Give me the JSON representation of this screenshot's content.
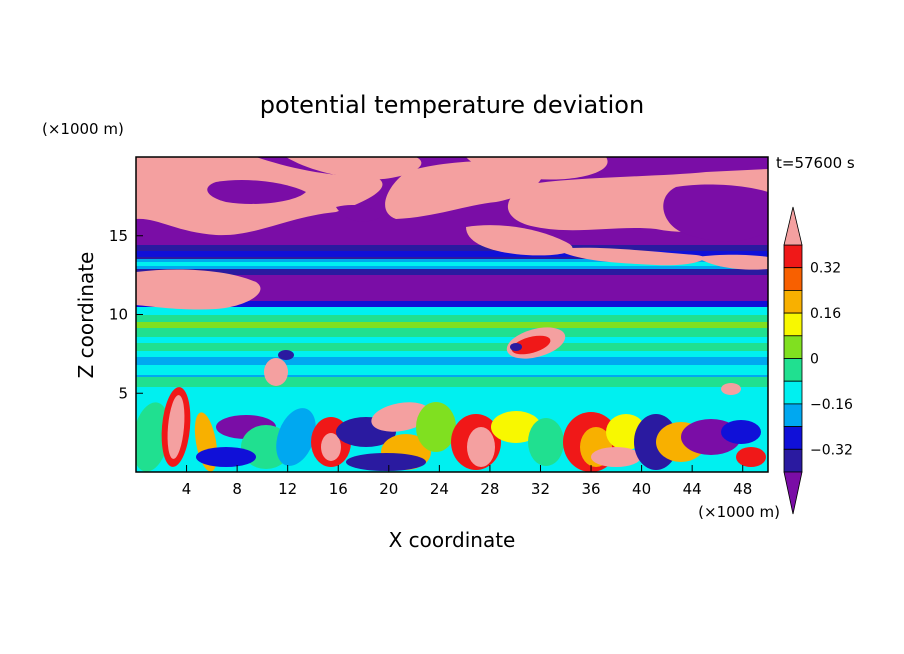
{
  "chart_data": {
    "type": "heatmap",
    "title": "potential temperature deviation",
    "xlabel": "X coordinate",
    "ylabel": "Z coordinate",
    "x_unit": "(×1000 m)",
    "y_unit": "(×1000 m)",
    "time_label": "t=57600 s",
    "xlim": [
      0,
      50
    ],
    "ylim": [
      0,
      20
    ],
    "x_ticks": [
      4,
      8,
      12,
      16,
      20,
      24,
      28,
      32,
      36,
      40,
      44,
      48
    ],
    "y_ticks": [
      5,
      10,
      15
    ],
    "colorbar": {
      "levels": [
        -0.4,
        -0.32,
        -0.24,
        -0.16,
        -0.08,
        0,
        0.08,
        0.16,
        0.24,
        0.32,
        0.4
      ],
      "labels": [
        "0.32",
        "0.16",
        "0",
        "−0.16",
        "−0.32"
      ],
      "label_values": [
        0.32,
        0.16,
        0,
        -0.16,
        -0.32
      ],
      "colors": [
        "#7a0da6",
        "#2a1aa0",
        "#1010d8",
        "#00a8f0",
        "#00f0f0",
        "#20e090",
        "#80e020",
        "#f8f800",
        "#f8b000",
        "#f86000",
        "#f01818",
        "#f4a0a0"
      ],
      "extend": "both"
    }
  }
}
